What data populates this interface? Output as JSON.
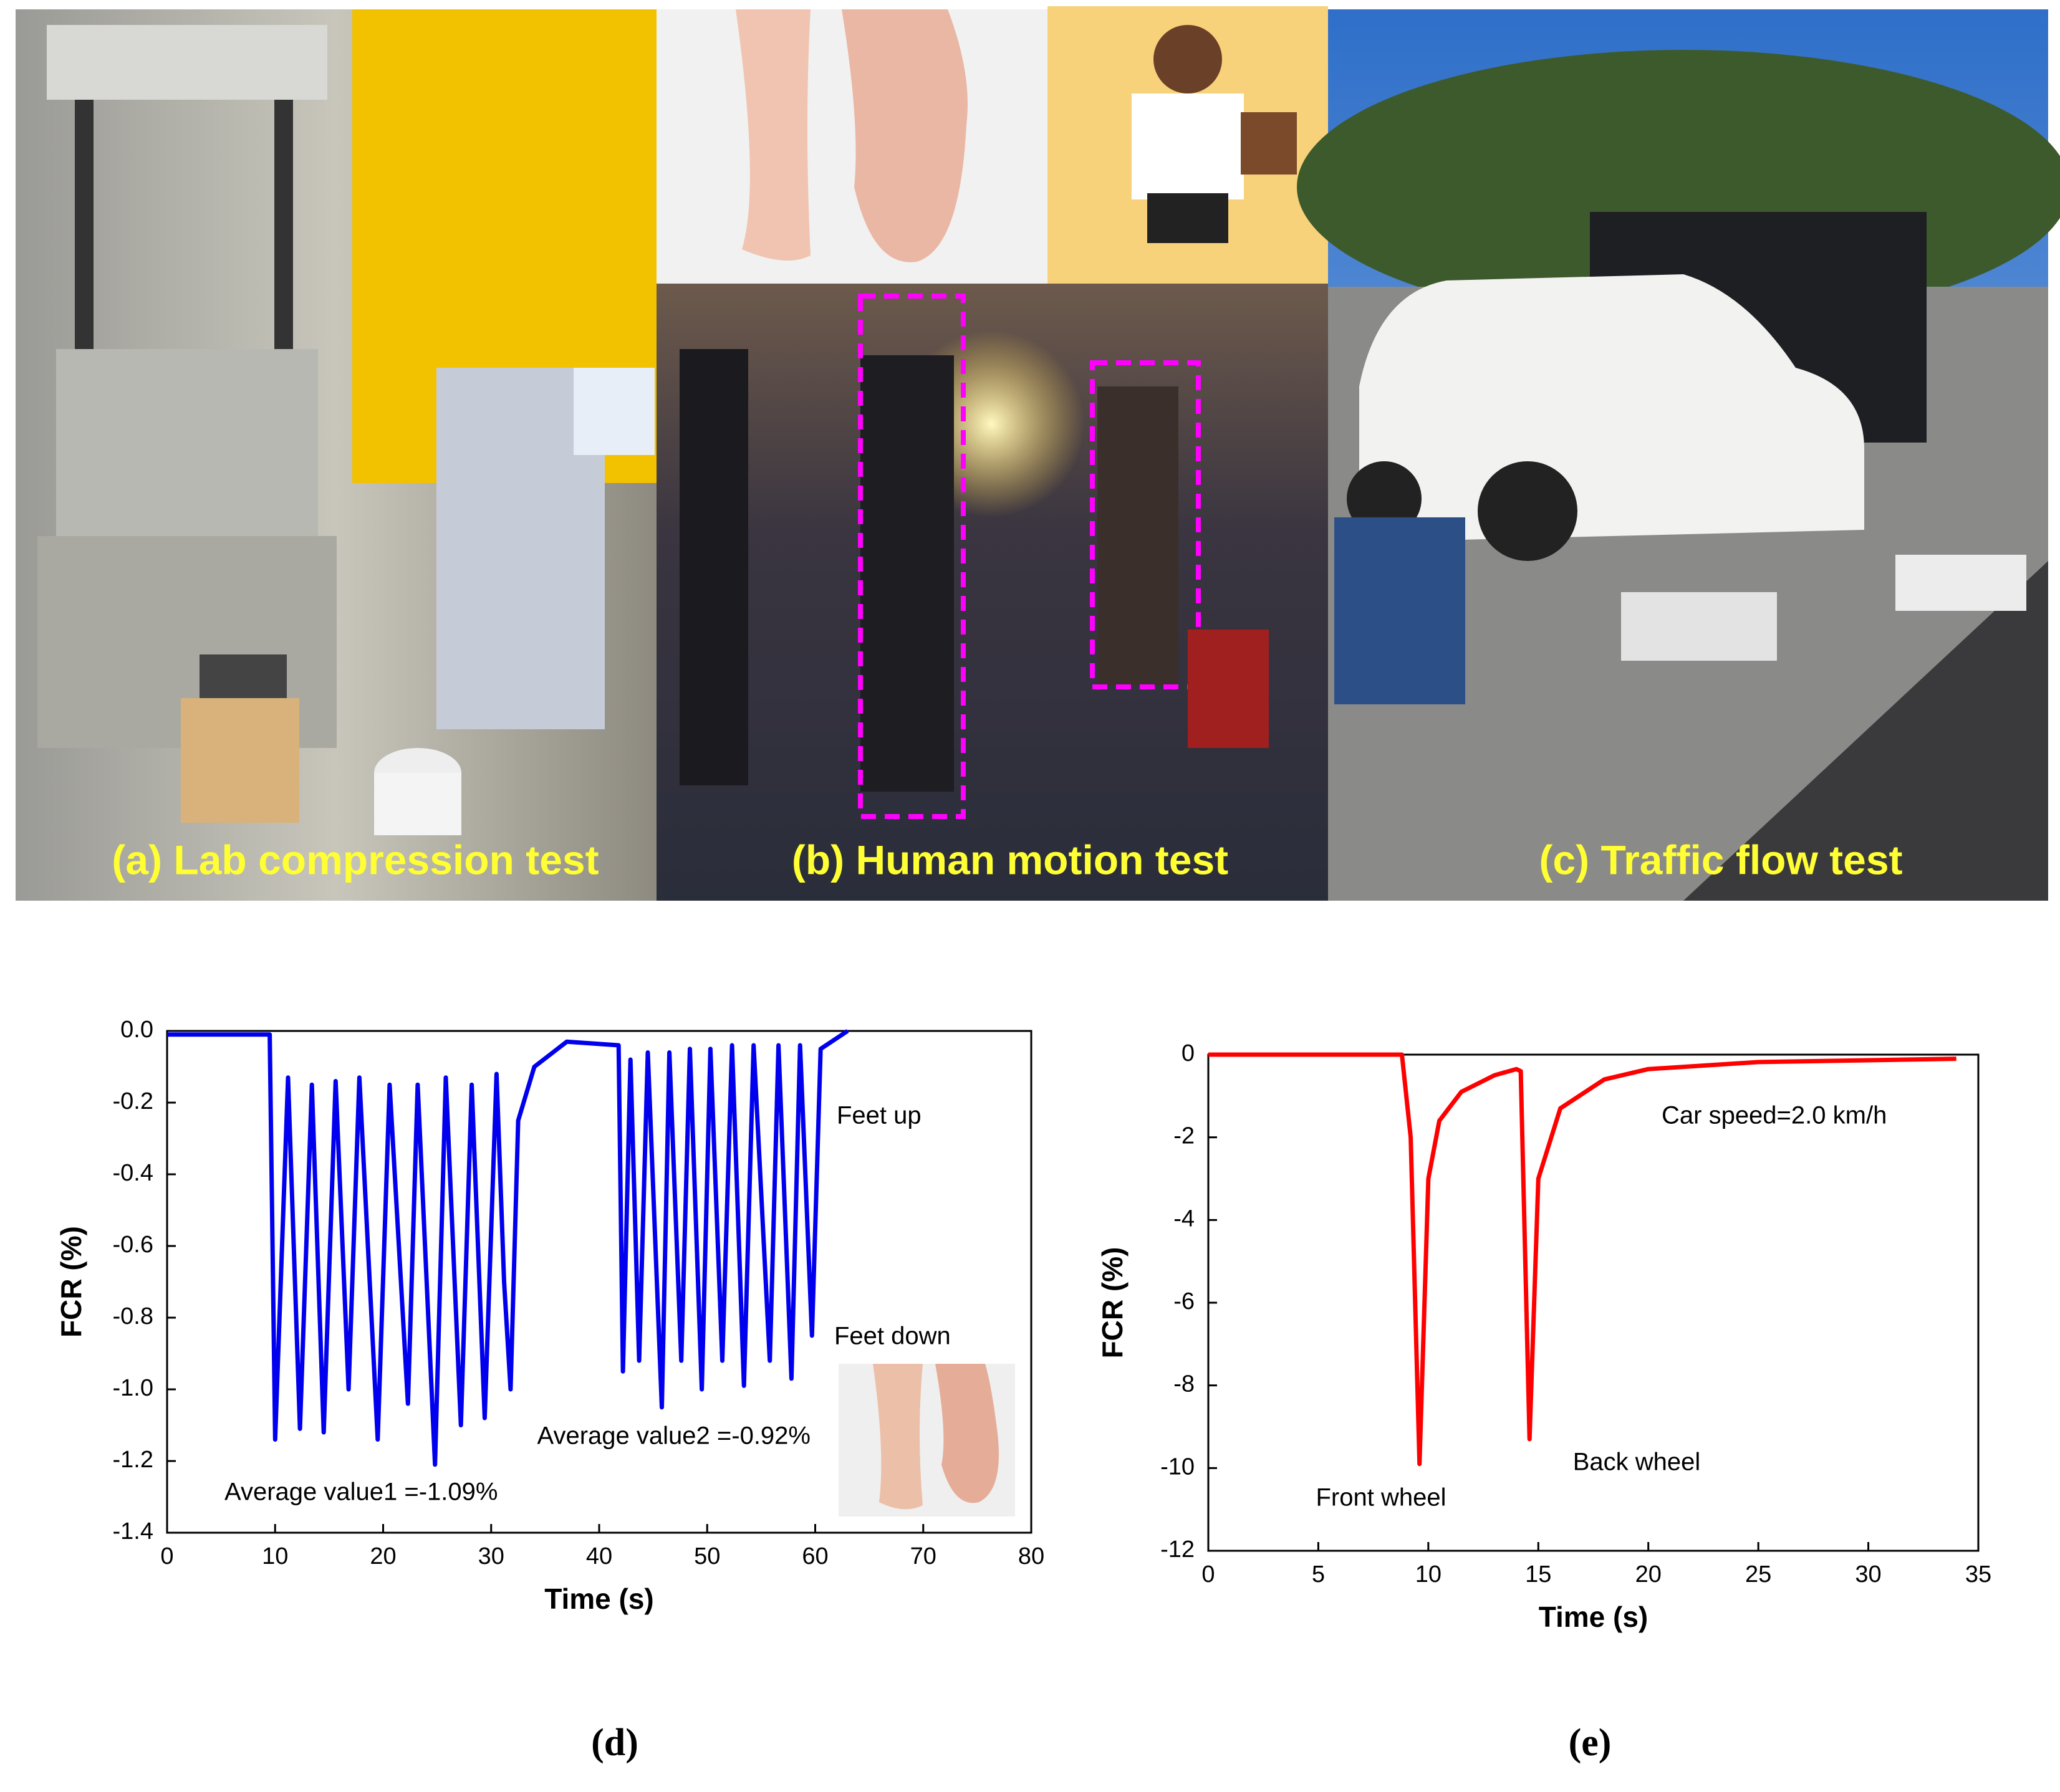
{
  "photos": {
    "captions": [
      "(a) Lab compression test",
      "(b) Human motion test",
      "(c) Traffic flow test"
    ]
  },
  "chart_data": [
    {
      "type": "line",
      "panel_label": "(d)",
      "xlabel": "Time (s)",
      "ylabel": "FCR (%)",
      "xlim": [
        0,
        80
      ],
      "xticks": [
        0,
        10,
        20,
        30,
        40,
        50,
        60,
        70,
        80
      ],
      "ylim": [
        -1.4,
        0
      ],
      "yticks": [
        {
          "value": 0,
          "label": "0.0"
        },
        -0.2,
        -0.4,
        -0.6,
        -0.8,
        {
          "value": -1,
          "label": "-1.0"
        },
        -1.2,
        -1.4
      ],
      "annotations": [
        "Feet up",
        "Feet down",
        "Average value2 =-0.92%",
        "Average value1 =-1.09%"
      ],
      "series": [
        {
          "color": "#0000ee",
          "x": [
            0,
            9.5,
            10.0,
            11.2,
            12.3,
            13.4,
            14.5,
            15.6,
            16.8,
            17.8,
            19.5,
            20.6,
            22.3,
            23.2,
            24.8,
            25.8,
            27.2,
            28.2,
            29.4,
            30.5,
            31.2,
            31.8,
            32.5,
            34,
            37,
            41.8,
            42.2,
            42.9,
            43.7,
            44.5,
            45.8,
            46.5,
            47.6,
            48.4,
            49.5,
            50.3,
            51.4,
            52.3,
            53.4,
            54.3,
            55.8,
            56.6,
            57.8,
            58.6,
            59.7,
            60.5,
            63
          ],
          "values": [
            -0.01,
            -0.01,
            -1.14,
            -0.13,
            -1.11,
            -0.15,
            -1.12,
            -0.14,
            -1.0,
            -0.13,
            -1.14,
            -0.15,
            -1.04,
            -0.15,
            -1.21,
            -0.13,
            -1.1,
            -0.15,
            -1.08,
            -0.12,
            -0.7,
            -1.0,
            -0.25,
            -0.1,
            -0.03,
            -0.04,
            -0.95,
            -0.08,
            -0.92,
            -0.06,
            -1.05,
            -0.06,
            -0.92,
            -0.05,
            -1.0,
            -0.05,
            -0.92,
            -0.04,
            -0.99,
            -0.04,
            -0.92,
            -0.04,
            -0.97,
            -0.04,
            -0.85,
            -0.05,
            0
          ]
        }
      ]
    },
    {
      "type": "line",
      "panel_label": "(e)",
      "xlabel": "Time (s)",
      "ylabel": "FCR (%)",
      "xlim": [
        0,
        35
      ],
      "xticks": [
        0,
        5,
        10,
        15,
        20,
        25,
        30,
        35
      ],
      "ylim": [
        -12,
        0
      ],
      "yticks": [
        0,
        -2,
        -4,
        -6,
        -8,
        -10,
        -12
      ],
      "annotations": [
        "Car speed=2.0 km/h",
        "Front wheel",
        "Back wheel"
      ],
      "series": [
        {
          "color": "#ff0000",
          "x": [
            0,
            8.8,
            9.2,
            9.6,
            10.0,
            10.5,
            11.5,
            13,
            14,
            14.2,
            14.6,
            15,
            16,
            18,
            20,
            25,
            34
          ],
          "values": [
            0,
            0,
            -2,
            -9.9,
            -3,
            -1.6,
            -0.9,
            -0.5,
            -0.35,
            -0.4,
            -9.3,
            -3,
            -1.3,
            -0.6,
            -0.35,
            -0.18,
            -0.1
          ]
        }
      ]
    }
  ]
}
